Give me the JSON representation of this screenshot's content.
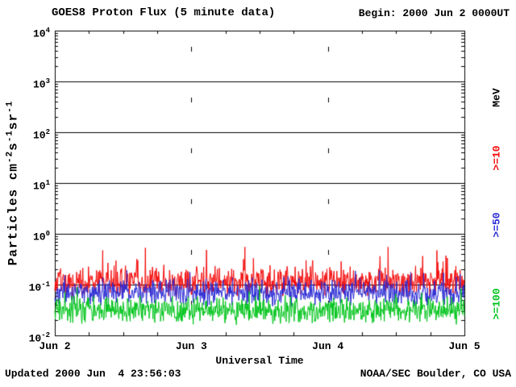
{
  "header": {
    "title": "GOES8 Proton Flux (5 minute data)",
    "begin_label": "Begin: 2000 Jun 2 0000UT"
  },
  "footer": {
    "updated": "Updated 2000 Jun  4 23:56:03",
    "credit": "NOAA/SEC Boulder, CO USA"
  },
  "chart_data": {
    "type": "line",
    "title": "GOES8 Proton Flux (5 minute data)",
    "subtitle": "Begin: 2000 Jun 2 0000UT",
    "xlabel": "Universal Time",
    "ylabel": "Particles cm-2 s-1 sr-1",
    "ylabel_parts": [
      {
        "text": "Particles cm"
      },
      {
        "sup": "-2"
      },
      {
        "text": "s"
      },
      {
        "sup": "-1"
      },
      {
        "text": "sr"
      },
      {
        "sup": "-1"
      }
    ],
    "x_tick_labels": [
      "Jun 2",
      "Jun 3",
      "Jun 4",
      "Jun 5"
    ],
    "x_axis": {
      "start": "2000 Jun 2 0000UT",
      "span_days": 3,
      "samples_per_day": 288
    },
    "y_axis": {
      "scale": "log10",
      "exponent_ticks": [
        4,
        3,
        2,
        1,
        0,
        -1,
        -2
      ],
      "ylim": [
        0.01,
        10000
      ]
    },
    "grid": {
      "horizontal": "solid black line at each decade",
      "vertical": "sparse dashed line at each day boundary"
    },
    "right_axis_title": "MeV",
    "series": [
      {
        "name": "Protons >=10 MeV",
        "right_label": ">=10",
        "color": "#f40b0b",
        "typical_flux": 0.12,
        "log10_mean": -0.95,
        "log10_spread": 0.33,
        "spike_prob": 0.08,
        "spike_amp": 0.55,
        "log10_min": -1.45,
        "log10_max": -0.26
      },
      {
        "name": "Protons >=50 MeV",
        "right_label": ">=50",
        "color": "#2a2ad4",
        "typical_flux": 0.07,
        "log10_mean": -1.17,
        "log10_spread": 0.28,
        "spike_prob": 0.05,
        "spike_amp": 0.38,
        "log10_min": -1.72,
        "log10_max": -0.72
      },
      {
        "name": "Protons >=100 MeV",
        "right_label": ">=100",
        "color": "#00c41b",
        "typical_flux": 0.033,
        "log10_mean": -1.5,
        "log10_spread": 0.3,
        "spike_prob": 0.04,
        "spike_amp": 0.35,
        "log10_min": -2.0,
        "log10_max": -1.02
      }
    ]
  }
}
